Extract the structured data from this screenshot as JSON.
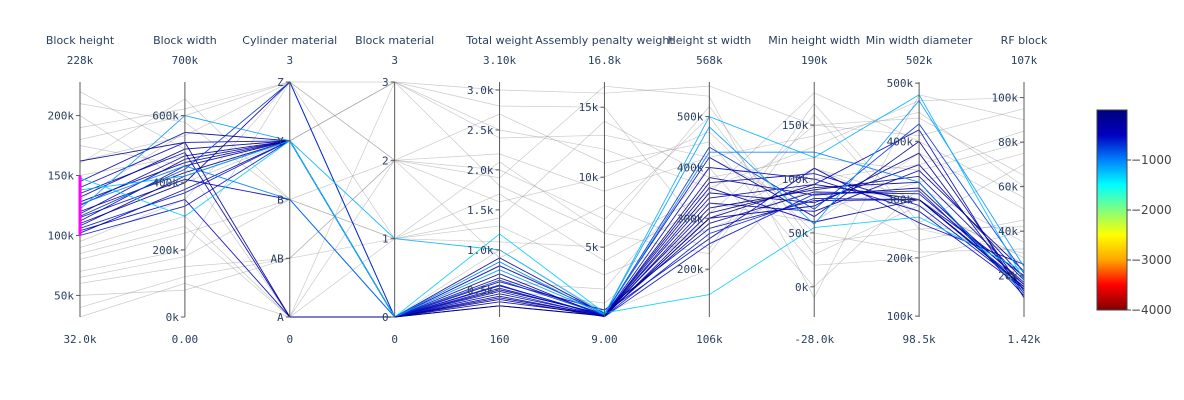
{
  "chart_data": {
    "type": "parcoords",
    "colorscale": [
      "#800000",
      "#ff0000",
      "#ffa500",
      "#ffff00",
      "#80ff80",
      "#00ffff",
      "#0080ff",
      "#0000c0",
      "#000080"
    ],
    "color_range": [
      -4000,
      0
    ],
    "colorbar_ticks": [
      -1000,
      -2000,
      -3000,
      -4000
    ],
    "colorbar_tick_labels": [
      "−1000",
      "−2000",
      "−3000",
      "−4000"
    ],
    "constraint_color": "#ff00ff",
    "dimensions": [
      {
        "label": "Block height",
        "range": [
          32000,
          228000
        ],
        "min_label": "32.0k",
        "max_label": "228k",
        "ticks": [
          50000,
          100000,
          150000,
          200000
        ],
        "tick_labels": [
          "50k",
          "100k",
          "150k",
          "200k"
        ],
        "constraint": [
          100000,
          150000
        ]
      },
      {
        "label": "Block width",
        "range": [
          0,
          700000
        ],
        "min_label": "0.00",
        "max_label": "700k",
        "ticks": [
          0,
          200000,
          400000,
          600000
        ],
        "tick_labels": [
          "0k",
          "200k",
          "400k",
          "600k"
        ]
      },
      {
        "label": "Cylinder material",
        "range": [
          0,
          3
        ],
        "min_label": "0",
        "max_label": "3",
        "ticks": [
          0,
          0.75,
          1.5,
          2.25,
          3
        ],
        "tick_labels": [
          "A",
          "AB",
          "B",
          "Y",
          "Z"
        ]
      },
      {
        "label": "Block material",
        "range": [
          0,
          3
        ],
        "min_label": "0",
        "max_label": "3",
        "ticks": [
          0,
          1,
          2,
          3
        ],
        "tick_labels": [
          "0",
          "1",
          "2",
          "3"
        ]
      },
      {
        "label": "Total weight",
        "range": [
          160,
          3100
        ],
        "min_label": "160",
        "max_label": "3.10k",
        "ticks": [
          500,
          1000,
          1500,
          2000,
          2500,
          3000
        ],
        "tick_labels": [
          "0.5k",
          "1.0k",
          "1.5k",
          "2.0k",
          "2.5k",
          "3.0k"
        ]
      },
      {
        "label": "Assembly penalty weight",
        "range": [
          9,
          16800
        ],
        "min_label": "9.00",
        "max_label": "16.8k",
        "ticks": [
          5000,
          10000,
          15000
        ],
        "tick_labels": [
          "5k",
          "10k",
          "15k"
        ]
      },
      {
        "label": "Height st width",
        "range": [
          106000,
          568000
        ],
        "min_label": "106k",
        "max_label": "568k",
        "ticks": [
          200000,
          300000,
          400000,
          500000
        ],
        "tick_labels": [
          "200k",
          "300k",
          "400k",
          "500k"
        ]
      },
      {
        "label": "Min height width",
        "range": [
          -28000,
          190000
        ],
        "min_label": "-28.0k",
        "max_label": "190k",
        "ticks": [
          0,
          50000,
          100000,
          150000
        ],
        "tick_labels": [
          "0k",
          "50k",
          "100k",
          "150k"
        ]
      },
      {
        "label": "Min width diameter",
        "range": [
          98500,
          502000
        ],
        "min_label": "98.5k",
        "max_label": "502k",
        "ticks": [
          100000,
          200000,
          300000,
          400000,
          500000
        ],
        "tick_labels": [
          "100k",
          "200k",
          "300k",
          "400k",
          "500k"
        ]
      },
      {
        "label": "RF block",
        "range": [
          1420,
          107000
        ],
        "min_label": "1.42k",
        "max_label": "107k",
        "ticks": [
          20000,
          40000,
          60000,
          80000,
          100000
        ],
        "tick_labels": [
          "20k",
          "40k",
          "60k",
          "80k",
          "100k"
        ]
      }
    ],
    "lines": [
      {
        "values": [
          102000,
          380000,
          2.25,
          0,
          600,
          500,
          280000,
          80000,
          300000,
          15000
        ],
        "color": -300
      },
      {
        "values": [
          108000,
          420000,
          2.25,
          0,
          500,
          200,
          320000,
          90000,
          340000,
          18000
        ],
        "color": -200
      },
      {
        "values": [
          112000,
          450000,
          2.25,
          0,
          400,
          100,
          300000,
          75000,
          380000,
          12000
        ],
        "color": -250
      },
      {
        "values": [
          118000,
          470000,
          2.25,
          0,
          350,
          150,
          340000,
          95000,
          420000,
          10000
        ],
        "color": -400
      },
      {
        "values": [
          125000,
          480000,
          2.25,
          0,
          450,
          120,
          360000,
          60000,
          300000,
          20000
        ],
        "color": -350
      },
      {
        "values": [
          132000,
          500000,
          2.25,
          0,
          300,
          80,
          380000,
          85000,
          320000,
          16000
        ],
        "color": -150
      },
      {
        "values": [
          140000,
          520000,
          2.25,
          0,
          550,
          90,
          400000,
          100000,
          280000,
          14000
        ],
        "color": -500
      },
      {
        "values": [
          145000,
          550000,
          2.25,
          0,
          700,
          60,
          330000,
          70000,
          350000,
          22000
        ],
        "color": -300
      },
      {
        "values": [
          104000,
          350000,
          0,
          0,
          800,
          300,
          260000,
          110000,
          260000,
          25000
        ],
        "color": -450
      },
      {
        "values": [
          110000,
          400000,
          3,
          0,
          900,
          250,
          420000,
          65000,
          400000,
          13000
        ],
        "color": -200
      },
      {
        "values": [
          115000,
          410000,
          1.5,
          0,
          650,
          180,
          290000,
          88000,
          310000,
          17000
        ],
        "color": -350
      },
      {
        "values": [
          120000,
          430000,
          2.25,
          0,
          380,
          40,
          310000,
          92000,
          330000,
          11000
        ],
        "color": -100
      },
      {
        "values": [
          128000,
          460000,
          2.25,
          0,
          420,
          70,
          350000,
          78000,
          360000,
          19000
        ],
        "color": -250
      },
      {
        "values": [
          135000,
          490000,
          0,
          0,
          520,
          110,
          370000,
          105000,
          290000,
          15000
        ],
        "color": -400
      },
      {
        "values": [
          106000,
          370000,
          2.25,
          0,
          480,
          50,
          270000,
          82000,
          300000,
          16000
        ],
        "color": -600
      },
      {
        "values": [
          100000,
          330000,
          2.25,
          0,
          560,
          30,
          250000,
          86000,
          315000,
          14000
        ],
        "color": -550
      },
      {
        "values": [
          116000,
          440000,
          3,
          0,
          620,
          160,
          440000,
          72000,
          430000,
          21000
        ],
        "color": -700
      },
      {
        "values": [
          122000,
          600000,
          2.25,
          0,
          750,
          220,
          480000,
          58000,
          470000,
          24000
        ],
        "color": -1100
      },
      {
        "values": [
          138000,
          420000,
          2.25,
          1,
          1000,
          200,
          500000,
          120000,
          480000,
          18000
        ],
        "color": -1200
      },
      {
        "values": [
          148000,
          300000,
          2.25,
          0,
          1200,
          300,
          150000,
          55000,
          270000,
          22000
        ],
        "color": -1300
      },
      {
        "values": [
          126000,
          450000,
          1.5,
          0,
          850,
          140,
          430000,
          125000,
          330000,
          12000
        ],
        "color": -1000
      },
      {
        "values": [
          162000,
          520000,
          0,
          0,
          300,
          100,
          300000,
          95000,
          300000,
          15000
        ],
        "color": -50
      },
      {
        "values": [
          162000,
          540000,
          3,
          3,
          1800,
          6000,
          520000,
          40000,
          250000,
          30000
        ],
        "color": 0,
        "gray": true
      },
      {
        "values": [
          60000,
          150000,
          0.75,
          2,
          2200,
          9000,
          420000,
          140000,
          450000,
          60000
        ],
        "color": 0,
        "gray": true
      },
      {
        "values": [
          80000,
          250000,
          1.5,
          1,
          1400,
          14000,
          380000,
          120000,
          350000,
          80000
        ],
        "color": 0,
        "gray": true
      },
      {
        "values": [
          180000,
          600000,
          3,
          2,
          2700,
          11000,
          450000,
          20000,
          200000,
          40000
        ],
        "color": 0,
        "gray": true
      },
      {
        "values": [
          32000,
          100000,
          0,
          0,
          1000,
          300,
          200000,
          110000,
          300000,
          25000
        ],
        "color": 0,
        "gray": true
      },
      {
        "values": [
          200000,
          400000,
          2.25,
          3,
          3000,
          16000,
          560000,
          150000,
          410000,
          95000
        ],
        "color": 0,
        "gray": true
      },
      {
        "values": [
          90000,
          300000,
          0,
          1,
          1700,
          4000,
          330000,
          60000,
          380000,
          50000
        ],
        "color": 0,
        "gray": true
      },
      {
        "values": [
          70000,
          200000,
          3,
          2,
          900,
          8000,
          240000,
          170000,
          260000,
          70000
        ],
        "color": 0,
        "gray": true
      },
      {
        "values": [
          160000,
          650000,
          1.5,
          0,
          600,
          2000,
          400000,
          0,
          320000,
          35000
        ],
        "color": 0,
        "gray": true
      },
      {
        "values": [
          220000,
          500000,
          2.25,
          3,
          2500,
          12000,
          360000,
          130000,
          470000,
          100000
        ],
        "color": 0,
        "gray": true
      },
      {
        "values": [
          50000,
          80000,
          0.75,
          1,
          1300,
          3000,
          280000,
          90000,
          230000,
          45000
        ],
        "color": 0,
        "gray": true
      },
      {
        "values": [
          175000,
          450000,
          0,
          2,
          2000,
          7000,
          500000,
          30000,
          290000,
          28000
        ],
        "color": 0,
        "gray": true
      },
      {
        "values": [
          95000,
          350000,
          3,
          0,
          800,
          500,
          310000,
          150000,
          440000,
          65000
        ],
        "color": 0,
        "gray": true
      },
      {
        "values": [
          130000,
          550000,
          2.25,
          3,
          2800,
          15000,
          260000,
          100000,
          360000,
          85000
        ],
        "color": 0,
        "gray": true
      },
      {
        "values": [
          65000,
          180000,
          1.5,
          2,
          1600,
          10000,
          470000,
          50000,
          210000,
          32000
        ],
        "color": 0,
        "gray": true
      },
      {
        "values": [
          190000,
          620000,
          3,
          1,
          1100,
          5000,
          350000,
          180000,
          400000,
          55000
        ],
        "color": 0,
        "gray": true
      },
      {
        "values": [
          85000,
          270000,
          0,
          3,
          2400,
          13000,
          420000,
          70000,
          330000,
          75000
        ],
        "color": 0,
        "gray": true
      },
      {
        "values": [
          150000,
          480000,
          2.25,
          0,
          500,
          1000,
          300000,
          110000,
          280000,
          20000
        ],
        "color": 0,
        "gray": true
      },
      {
        "values": [
          40000,
          120000,
          0.75,
          2,
          1900,
          16500,
          540000,
          -10000,
          480000,
          90000
        ],
        "color": 0,
        "gray": true
      },
      {
        "values": [
          210000,
          580000,
          1.5,
          1,
          2100,
          6000,
          230000,
          160000,
          250000,
          42000
        ],
        "color": 0,
        "gray": true
      }
    ]
  }
}
